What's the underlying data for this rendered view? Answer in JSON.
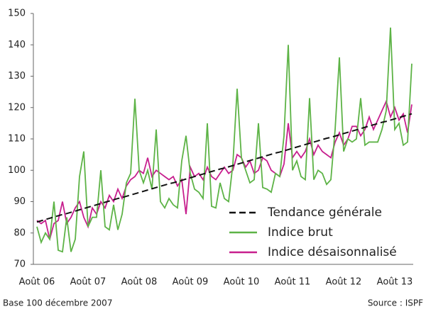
{
  "chart_data": {
    "type": "line",
    "categories": [
      "Août 06",
      null,
      null,
      null,
      null,
      null,
      null,
      null,
      null,
      null,
      null,
      null,
      "Août 07",
      null,
      null,
      null,
      null,
      null,
      null,
      null,
      null,
      null,
      null,
      null,
      "Août 08",
      null,
      null,
      null,
      null,
      null,
      null,
      null,
      null,
      null,
      null,
      null,
      "Août 09",
      null,
      null,
      null,
      null,
      null,
      null,
      null,
      null,
      null,
      null,
      null,
      "Août 10",
      null,
      null,
      null,
      null,
      null,
      null,
      null,
      null,
      null,
      null,
      null,
      "Août 11",
      null,
      null,
      null,
      null,
      null,
      null,
      null,
      null,
      null,
      null,
      null,
      "Août 12",
      null,
      null,
      null,
      null,
      null,
      null,
      null,
      null,
      null,
      null,
      null,
      "Août 13",
      null,
      null,
      null,
      null
    ],
    "series": [
      {
        "name": "Tendance générale",
        "color": "#111111",
        "linestyle": "dashed",
        "values": [
          83.5,
          83.9,
          84.3,
          84.7,
          85.1,
          85.5,
          85.9,
          86.2,
          86.6,
          87.0,
          87.4,
          87.8,
          88.2,
          88.6,
          89.0,
          89.4,
          89.8,
          90.2,
          90.6,
          91.0,
          91.3,
          91.7,
          92.1,
          92.5,
          92.9,
          93.3,
          93.7,
          94.1,
          94.5,
          94.9,
          95.3,
          95.7,
          96.0,
          96.4,
          96.8,
          97.2,
          97.6,
          98.0,
          98.4,
          98.8,
          99.2,
          99.6,
          100.0,
          100.4,
          100.7,
          101.1,
          101.5,
          101.9,
          102.3,
          102.7,
          103.1,
          103.5,
          103.9,
          104.3,
          104.7,
          105.1,
          105.5,
          105.8,
          106.2,
          106.6,
          107.0,
          107.4,
          107.8,
          108.2,
          108.6,
          109.0,
          109.4,
          109.8,
          110.2,
          110.5,
          110.9,
          111.3,
          111.7,
          112.1,
          112.5,
          112.9,
          113.3,
          113.7,
          114.1,
          114.5,
          114.9,
          115.3,
          115.6,
          116.0,
          116.4,
          116.8,
          117.2,
          117.6,
          118.0
        ]
      },
      {
        "name": "Indice brut",
        "color": "#5db346",
        "linestyle": "solid",
        "values": [
          82,
          77,
          80,
          78,
          90,
          74.5,
          74,
          85,
          74,
          78,
          98,
          106,
          82,
          85,
          85,
          100,
          82,
          81,
          89,
          81,
          86,
          96,
          99,
          122.8,
          100,
          96,
          100,
          94,
          113,
          90,
          88,
          91,
          89,
          88,
          103,
          111,
          99,
          94,
          93,
          91,
          115,
          88.5,
          88,
          96,
          91,
          90,
          102,
          126,
          104,
          100,
          96,
          97,
          115,
          94.5,
          94,
          93,
          99,
          98,
          111,
          140,
          100,
          103,
          98,
          97,
          123,
          97,
          100,
          99,
          95.5,
          97,
          113,
          136,
          106,
          110,
          109,
          110,
          123,
          108,
          109,
          109,
          109,
          113,
          119,
          145.5,
          113,
          115,
          108,
          109,
          134
        ]
      },
      {
        "name": "Indice désaisonnalisé",
        "color": "#c71f8e",
        "linestyle": "solid",
        "values": [
          84,
          83,
          84,
          78,
          83,
          84,
          90,
          83,
          85,
          88,
          90,
          85,
          82,
          88,
          86,
          90,
          88,
          92,
          90,
          94,
          91,
          95,
          97,
          98,
          100,
          99,
          104,
          98,
          100,
          99,
          98,
          97,
          98,
          95,
          97,
          86,
          101,
          98,
          99,
          97,
          101,
          98,
          97,
          99,
          101,
          99,
          100,
          105,
          104,
          101,
          103,
          99,
          100,
          104,
          103,
          100,
          99,
          98,
          102,
          115,
          104,
          106,
          104,
          106,
          110,
          105,
          108,
          106,
          105,
          104,
          109,
          112,
          108,
          110,
          114,
          114,
          111,
          113,
          117,
          113,
          116,
          119,
          122,
          117,
          120,
          116,
          118,
          112,
          121
        ]
      }
    ],
    "ylim": [
      70,
      150
    ],
    "yticks": [
      70,
      80,
      90,
      100,
      110,
      120,
      130,
      140,
      150
    ],
    "legend": "lower right",
    "notes": [
      "Base 100 décembre 2007",
      "Source : ISPF"
    ]
  }
}
